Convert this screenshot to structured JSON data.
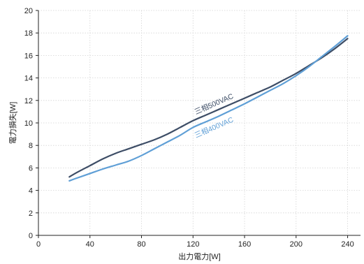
{
  "chart_data": {
    "type": "line",
    "title": "",
    "xlabel": "出力電力[W]",
    "ylabel": "電力損失[W]",
    "xlim": [
      0,
      250
    ],
    "ylim": [
      0,
      20
    ],
    "x_ticks": [
      0,
      40,
      80,
      120,
      160,
      200,
      240
    ],
    "y_ticks": [
      0,
      2,
      4,
      6,
      8,
      10,
      12,
      14,
      16,
      18,
      20
    ],
    "grid": true,
    "series": [
      {
        "name": "三相500VAC",
        "color": "#3d4d66",
        "x": [
          24,
          30,
          40,
          50,
          60,
          70,
          80,
          90,
          100,
          110,
          120,
          130,
          140,
          150,
          160,
          170,
          180,
          190,
          200,
          210,
          220,
          230,
          240
        ],
        "y": [
          5.2,
          5.6,
          6.2,
          6.8,
          7.3,
          7.7,
          8.1,
          8.5,
          9.0,
          9.6,
          10.2,
          10.7,
          11.2,
          11.7,
          12.2,
          12.7,
          13.2,
          13.8,
          14.4,
          15.1,
          15.8,
          16.6,
          17.5
        ]
      },
      {
        "name": "三相400VAC",
        "color": "#5f9fd6",
        "x": [
          24,
          30,
          40,
          50,
          60,
          70,
          80,
          90,
          100,
          110,
          120,
          130,
          140,
          150,
          160,
          170,
          180,
          190,
          200,
          210,
          220,
          230,
          240
        ],
        "y": [
          4.85,
          5.1,
          5.5,
          5.9,
          6.25,
          6.6,
          7.1,
          7.7,
          8.3,
          8.9,
          9.6,
          10.1,
          10.6,
          11.15,
          11.7,
          12.3,
          12.9,
          13.5,
          14.2,
          15.0,
          15.9,
          16.8,
          17.75
        ]
      }
    ]
  }
}
